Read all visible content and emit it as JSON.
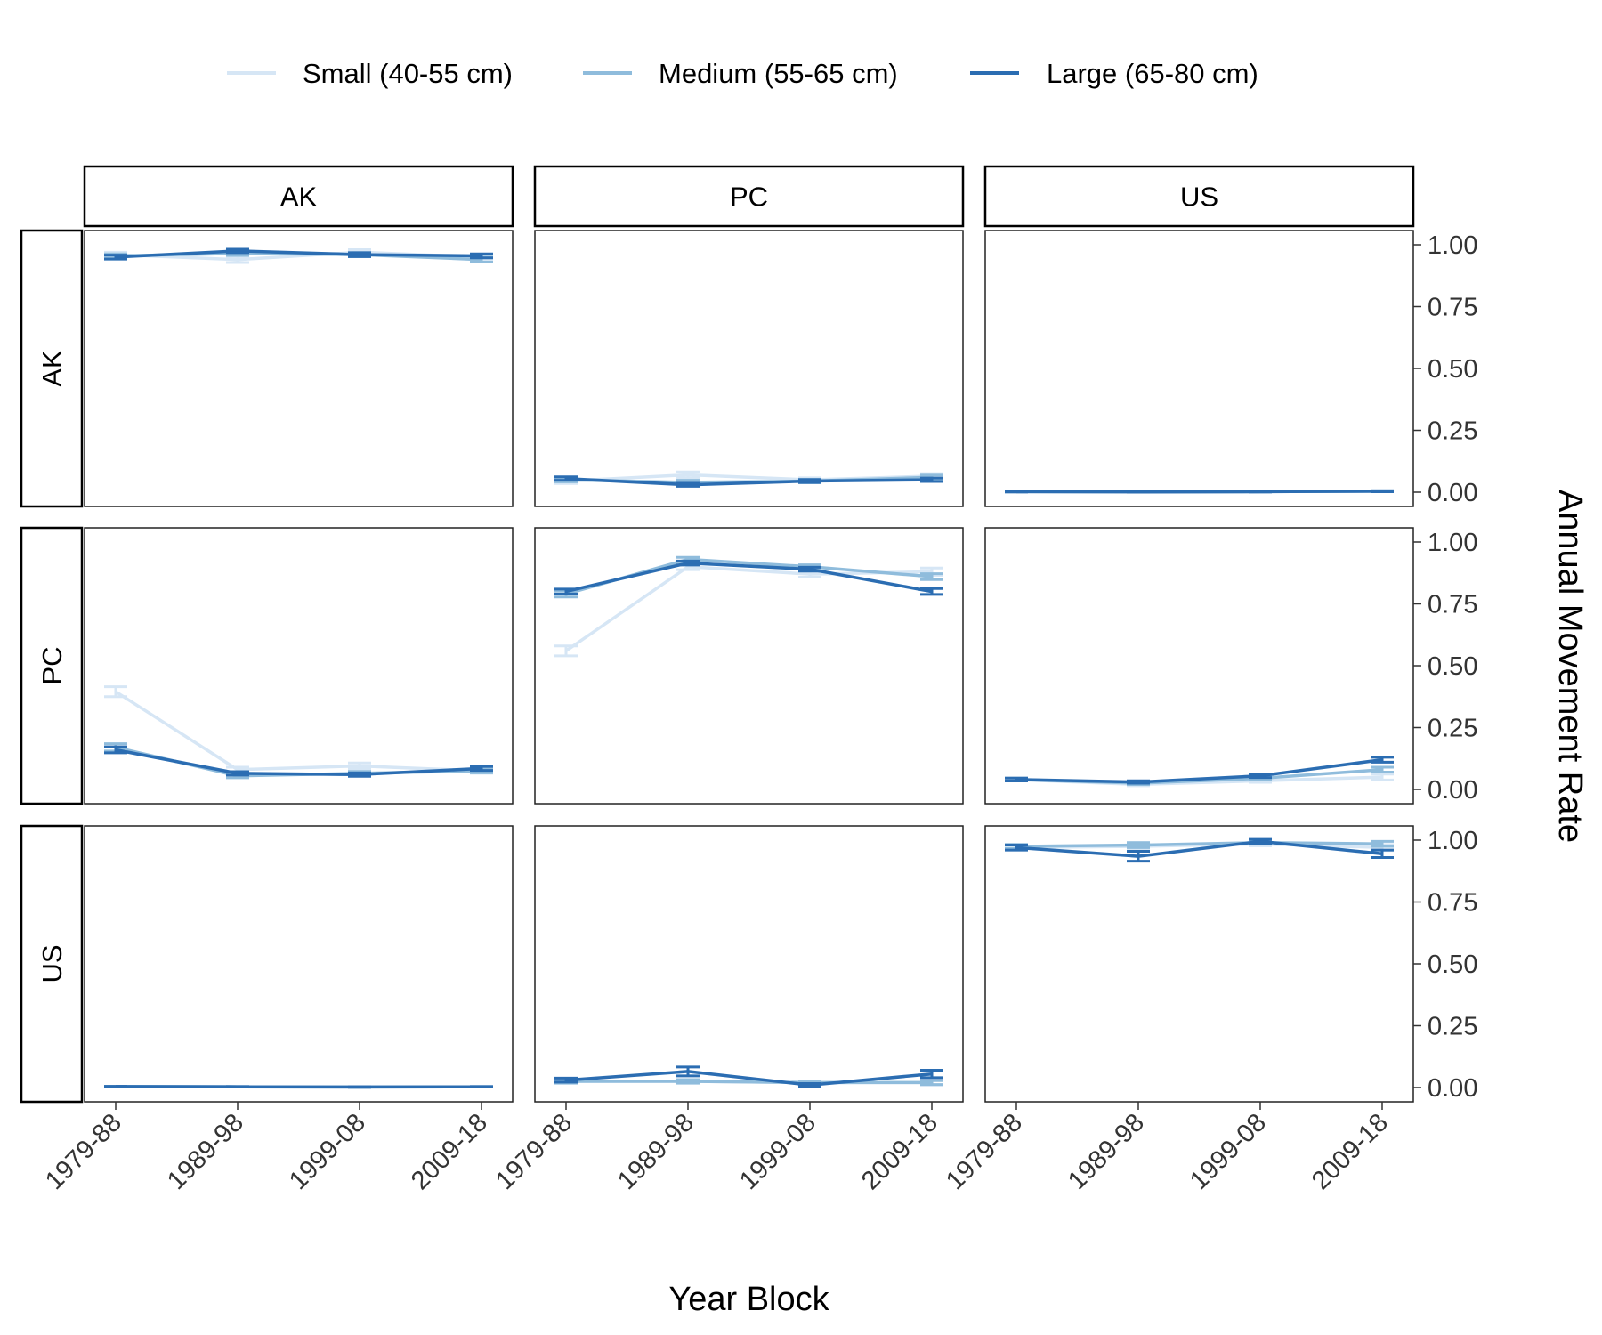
{
  "chart_data": {
    "type": "line",
    "xlabel": "Year Block",
    "ylabel": "Annual Movement Rate",
    "categories": [
      "1979-88",
      "1989-98",
      "1999-08",
      "2009-18"
    ],
    "ylim": [
      0,
      1
    ],
    "yticks": [
      "0.00",
      "0.25",
      "0.50",
      "0.75",
      "1.00"
    ],
    "legend_position": "top",
    "rows": [
      "AK",
      "PC",
      "US"
    ],
    "cols": [
      "AK",
      "PC",
      "US"
    ],
    "series": [
      {
        "name": "Small (40-55 cm)",
        "color": "#d6e6f5"
      },
      {
        "name": "Medium (55-65 cm)",
        "color": "#8fbcdc"
      },
      {
        "name": "Large (65-80 cm)",
        "color": "#2b6db2"
      }
    ],
    "panels": [
      {
        "row": "AK",
        "col": "AK",
        "values": [
          [
            0.96,
            0.94,
            0.97,
            0.95
          ],
          [
            0.955,
            0.965,
            0.96,
            0.94
          ],
          [
            0.95,
            0.975,
            0.96,
            0.955
          ]
        ],
        "err": [
          [
            0.01,
            0.012,
            0.01,
            0.01
          ],
          [
            0.008,
            0.008,
            0.008,
            0.01
          ],
          [
            0.008,
            0.007,
            0.008,
            0.008
          ]
        ]
      },
      {
        "row": "AK",
        "col": "PC",
        "values": [
          [
            0.045,
            0.07,
            0.05,
            0.065
          ],
          [
            0.05,
            0.04,
            0.045,
            0.06
          ],
          [
            0.055,
            0.03,
            0.045,
            0.05
          ]
        ],
        "err": [
          [
            0.01,
            0.012,
            0.008,
            0.01
          ],
          [
            0.008,
            0.008,
            0.007,
            0.009
          ],
          [
            0.007,
            0.006,
            0.006,
            0.007
          ]
        ]
      },
      {
        "row": "AK",
        "col": "US",
        "values": [
          [
            0.002,
            0.001,
            0.002,
            0.004
          ],
          [
            0.002,
            0.001,
            0.002,
            0.004
          ],
          [
            0.002,
            0.001,
            0.002,
            0.004
          ]
        ],
        "err": [
          [
            0.001,
            0.001,
            0.001,
            0.002
          ],
          [
            0.001,
            0.001,
            0.001,
            0.002
          ],
          [
            0.001,
            0.001,
            0.001,
            0.002
          ]
        ]
      },
      {
        "row": "PC",
        "col": "AK",
        "values": [
          [
            0.395,
            0.08,
            0.095,
            0.075
          ],
          [
            0.17,
            0.055,
            0.065,
            0.075
          ],
          [
            0.16,
            0.065,
            0.06,
            0.085
          ]
        ],
        "err": [
          [
            0.02,
            0.01,
            0.012,
            0.01
          ],
          [
            0.015,
            0.008,
            0.008,
            0.008
          ],
          [
            0.012,
            0.007,
            0.007,
            0.008
          ]
        ]
      },
      {
        "row": "PC",
        "col": "PC",
        "values": [
          [
            0.56,
            0.9,
            0.87,
            0.88
          ],
          [
            0.79,
            0.93,
            0.9,
            0.86
          ],
          [
            0.8,
            0.915,
            0.89,
            0.8
          ]
        ],
        "err": [
          [
            0.02,
            0.012,
            0.012,
            0.015
          ],
          [
            0.012,
            0.008,
            0.008,
            0.012
          ],
          [
            0.01,
            0.008,
            0.008,
            0.012
          ]
        ]
      },
      {
        "row": "PC",
        "col": "US",
        "values": [
          [
            0.04,
            0.02,
            0.035,
            0.05
          ],
          [
            0.04,
            0.025,
            0.045,
            0.08
          ],
          [
            0.04,
            0.03,
            0.055,
            0.12
          ]
        ],
        "err": [
          [
            0.006,
            0.005,
            0.006,
            0.012
          ],
          [
            0.006,
            0.005,
            0.006,
            0.01
          ],
          [
            0.006,
            0.005,
            0.007,
            0.01
          ]
        ]
      },
      {
        "row": "US",
        "col": "AK",
        "values": [
          [
            0.004,
            0.003,
            0.002,
            0.003
          ],
          [
            0.004,
            0.003,
            0.002,
            0.003
          ],
          [
            0.004,
            0.003,
            0.002,
            0.003
          ]
        ],
        "err": [
          [
            0.001,
            0.001,
            0.001,
            0.001
          ],
          [
            0.001,
            0.001,
            0.001,
            0.001
          ],
          [
            0.001,
            0.001,
            0.001,
            0.001
          ]
        ]
      },
      {
        "row": "US",
        "col": "PC",
        "values": [
          [
            0.025,
            0.025,
            0.02,
            0.02
          ],
          [
            0.025,
            0.025,
            0.02,
            0.02
          ],
          [
            0.03,
            0.065,
            0.01,
            0.055
          ]
        ],
        "err": [
          [
            0.008,
            0.008,
            0.006,
            0.01
          ],
          [
            0.007,
            0.007,
            0.006,
            0.008
          ],
          [
            0.008,
            0.018,
            0.006,
            0.015
          ]
        ]
      },
      {
        "row": "US",
        "col": "US",
        "values": [
          [
            0.97,
            0.975,
            0.985,
            0.97
          ],
          [
            0.975,
            0.98,
            0.99,
            0.985
          ],
          [
            0.97,
            0.935,
            0.995,
            0.945
          ]
        ],
        "err": [
          [
            0.01,
            0.015,
            0.008,
            0.012
          ],
          [
            0.008,
            0.01,
            0.006,
            0.01
          ],
          [
            0.01,
            0.02,
            0.008,
            0.015
          ]
        ]
      }
    ]
  }
}
